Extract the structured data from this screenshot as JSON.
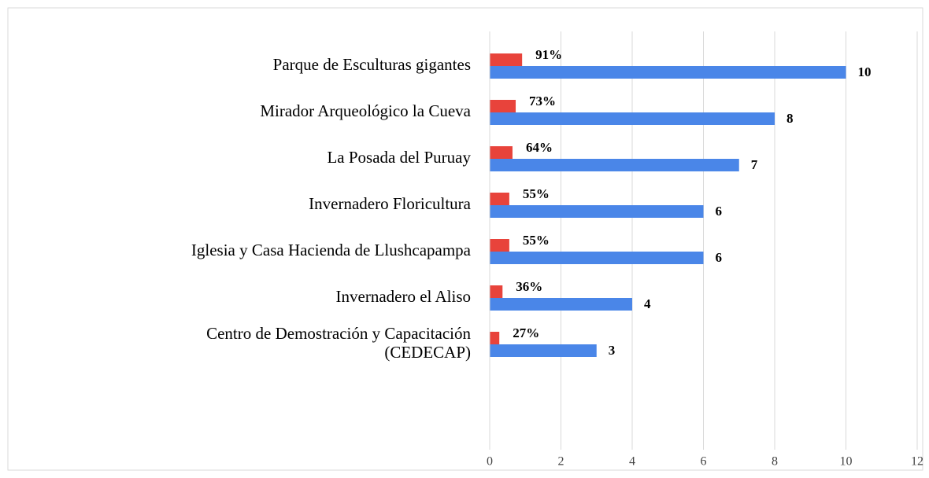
{
  "chart_data": {
    "type": "bar",
    "orientation": "horizontal",
    "categories": [
      "Parque de Esculturas gigantes",
      "Mirador Arqueológico la Cueva",
      "La Posada del Puruay",
      "Invernadero Floricultura",
      "Iglesia y Casa Hacienda de Llushcapampa",
      "Invernadero el Aliso",
      "Centro de Demostración y Capacitación\n(CEDECAP)"
    ],
    "series": [
      {
        "color": "#e8433b",
        "values": [
          0.91,
          0.73,
          0.64,
          0.55,
          0.55,
          0.36,
          0.27
        ],
        "value_labels": [
          "91%",
          "73%",
          "64%",
          "55%",
          "55%",
          "36%",
          "27%"
        ]
      },
      {
        "color": "#4a86e8",
        "values": [
          10,
          8,
          7,
          6,
          6,
          4,
          3
        ]
      }
    ],
    "xlim": [
      0,
      12
    ],
    "xticks": [
      0,
      2,
      4,
      6,
      8,
      10,
      12
    ],
    "grid": true
  }
}
